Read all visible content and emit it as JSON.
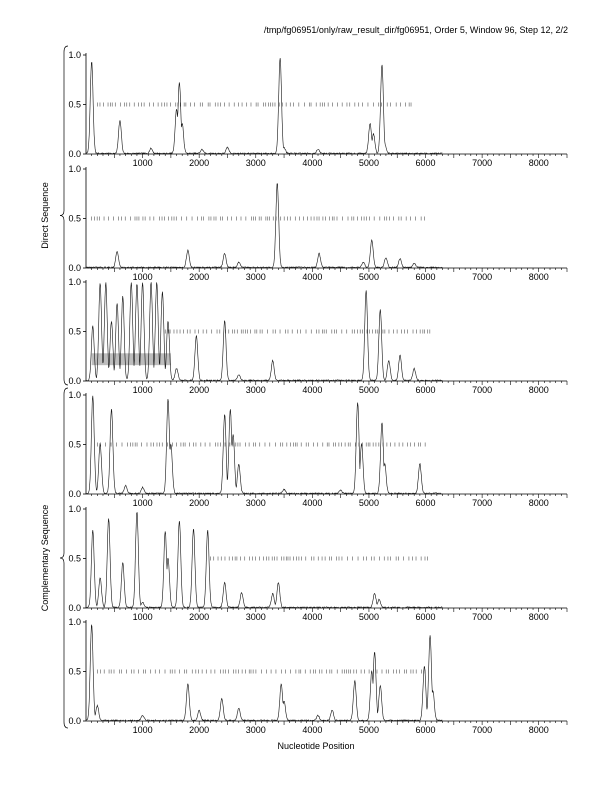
{
  "header": "/tmp/fg06951/only/raw_result_dir/fg06951, Order 5, Window 96, Step 12, 2/2",
  "xlabel": "Nucleotide Position",
  "group_labels": [
    "Direct Sequence",
    "Complementary Sequence"
  ],
  "chart_data": {
    "type": "line",
    "x_range": [
      0,
      8500
    ],
    "y_range": [
      0,
      1.0
    ],
    "x_ticks": [
      1000,
      2000,
      3000,
      4000,
      5000,
      6000,
      7000,
      8000
    ],
    "y_ticks": [
      "0.0",
      "0.5",
      "1.0"
    ],
    "grid": false,
    "panels": [
      {
        "group": "Direct Sequence",
        "marker_line_range": [
          200,
          5800
        ],
        "peaks": [
          [
            100,
            0.93
          ],
          [
            600,
            0.33
          ],
          [
            1150,
            0.05
          ],
          [
            1600,
            0.45
          ],
          [
            1650,
            0.72
          ],
          [
            1700,
            0.3
          ],
          [
            2050,
            0.04
          ],
          [
            2500,
            0.06
          ],
          [
            3430,
            0.97
          ],
          [
            3500,
            0.06
          ],
          [
            4100,
            0.04
          ],
          [
            5020,
            0.3
          ],
          [
            5080,
            0.2
          ],
          [
            5230,
            0.9
          ],
          [
            5280,
            0.1
          ]
        ]
      },
      {
        "group": "Direct Sequence",
        "marker_line_range": [
          100,
          6000
        ],
        "peaks": [
          [
            550,
            0.16
          ],
          [
            1800,
            0.17
          ],
          [
            2450,
            0.14
          ],
          [
            2700,
            0.05
          ],
          [
            3380,
            0.85
          ],
          [
            4120,
            0.14
          ],
          [
            4900,
            0.05
          ],
          [
            5050,
            0.28
          ],
          [
            5300,
            0.1
          ],
          [
            5550,
            0.09
          ],
          [
            5800,
            0.04
          ]
        ]
      },
      {
        "group": "Direct Sequence",
        "marker_line_range": [
          1400,
          6100
        ],
        "highlight_box": [
          100,
          1500,
          0.16,
          0.28
        ],
        "peaks": [
          [
            120,
            0.55
          ],
          [
            250,
            0.98
          ],
          [
            350,
            0.99
          ],
          [
            450,
            0.6
          ],
          [
            550,
            0.78
          ],
          [
            650,
            0.85
          ],
          [
            800,
            0.99
          ],
          [
            900,
            0.98
          ],
          [
            1000,
            0.99
          ],
          [
            1150,
            0.99
          ],
          [
            1250,
            0.99
          ],
          [
            1350,
            0.9
          ],
          [
            1450,
            0.6
          ],
          [
            1600,
            0.12
          ],
          [
            1950,
            0.45
          ],
          [
            2450,
            0.6
          ],
          [
            2700,
            0.06
          ],
          [
            3300,
            0.2
          ],
          [
            4950,
            0.91
          ],
          [
            5200,
            0.72
          ],
          [
            5350,
            0.2
          ],
          [
            5550,
            0.25
          ],
          [
            5800,
            0.12
          ]
        ]
      },
      {
        "group": "Complementary Sequence",
        "marker_line_range": [
          200,
          6000
        ],
        "peaks": [
          [
            120,
            0.99
          ],
          [
            250,
            0.5
          ],
          [
            450,
            0.85
          ],
          [
            700,
            0.08
          ],
          [
            1000,
            0.06
          ],
          [
            1450,
            0.95
          ],
          [
            1500,
            0.5
          ],
          [
            2450,
            0.8
          ],
          [
            2550,
            0.85
          ],
          [
            2600,
            0.6
          ],
          [
            2700,
            0.3
          ],
          [
            3500,
            0.04
          ],
          [
            4500,
            0.03
          ],
          [
            4800,
            0.92
          ],
          [
            4870,
            0.5
          ],
          [
            5230,
            0.72
          ],
          [
            5280,
            0.3
          ],
          [
            5900,
            0.3
          ]
        ]
      },
      {
        "group": "Complementary Sequence",
        "marker_line_range": [
          2200,
          6100
        ],
        "peaks": [
          [
            120,
            0.78
          ],
          [
            250,
            0.3
          ],
          [
            400,
            0.9
          ],
          [
            650,
            0.45
          ],
          [
            900,
            0.97
          ],
          [
            1000,
            0.05
          ],
          [
            1400,
            0.77
          ],
          [
            1450,
            0.5
          ],
          [
            1650,
            0.88
          ],
          [
            1900,
            0.8
          ],
          [
            2150,
            0.78
          ],
          [
            2450,
            0.25
          ],
          [
            2750,
            0.15
          ],
          [
            3300,
            0.14
          ],
          [
            3400,
            0.25
          ],
          [
            5100,
            0.14
          ],
          [
            5180,
            0.08
          ]
        ]
      },
      {
        "group": "Complementary Sequence",
        "marker_line_range": [
          200,
          6000
        ],
        "peaks": [
          [
            100,
            0.97
          ],
          [
            200,
            0.15
          ],
          [
            1000,
            0.05
          ],
          [
            1800,
            0.37
          ],
          [
            2000,
            0.1
          ],
          [
            2400,
            0.22
          ],
          [
            2700,
            0.12
          ],
          [
            3450,
            0.37
          ],
          [
            3500,
            0.2
          ],
          [
            4100,
            0.05
          ],
          [
            4350,
            0.1
          ],
          [
            4750,
            0.4
          ],
          [
            5050,
            0.5
          ],
          [
            5100,
            0.7
          ],
          [
            5200,
            0.35
          ],
          [
            5980,
            0.55
          ],
          [
            6080,
            0.86
          ],
          [
            6130,
            0.3
          ]
        ]
      }
    ]
  }
}
